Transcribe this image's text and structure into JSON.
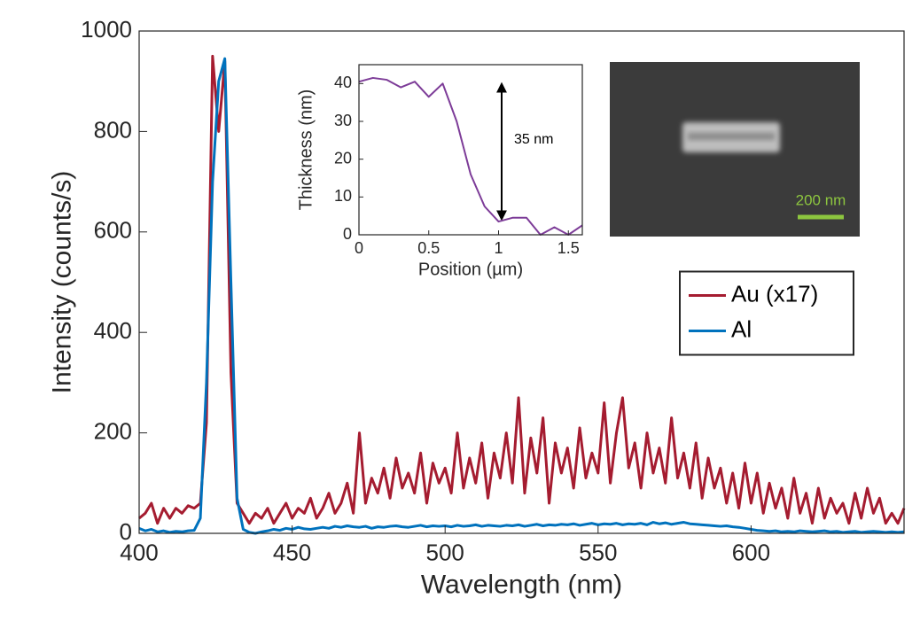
{
  "chart_data": [
    {
      "type": "line",
      "xlabel": "Wavelength (nm)",
      "ylabel": "Intensity (counts/s)",
      "xlim": [
        400,
        650
      ],
      "ylim": [
        0,
        1000
      ],
      "xticks": [
        400,
        450,
        500,
        550,
        600
      ],
      "yticks": [
        0,
        200,
        400,
        600,
        800,
        1000
      ],
      "grid": false,
      "legend": "east",
      "x": [
        400,
        402,
        404,
        406,
        408,
        410,
        412,
        414,
        416,
        418,
        420,
        422,
        424,
        426,
        428,
        430,
        432,
        434,
        436,
        438,
        440,
        442,
        444,
        446,
        448,
        450,
        452,
        454,
        456,
        458,
        460,
        462,
        464,
        466,
        468,
        470,
        472,
        474,
        476,
        478,
        480,
        482,
        484,
        486,
        488,
        490,
        492,
        494,
        496,
        498,
        500,
        502,
        504,
        506,
        508,
        510,
        512,
        514,
        516,
        518,
        520,
        522,
        524,
        526,
        528,
        530,
        532,
        534,
        536,
        538,
        540,
        542,
        544,
        546,
        548,
        550,
        552,
        554,
        556,
        558,
        560,
        562,
        564,
        566,
        568,
        570,
        572,
        574,
        576,
        578,
        580,
        582,
        584,
        586,
        588,
        590,
        592,
        594,
        596,
        598,
        600,
        602,
        604,
        606,
        608,
        610,
        612,
        614,
        616,
        618,
        620,
        622,
        624,
        626,
        628,
        630,
        632,
        634,
        636,
        638,
        640,
        642,
        644,
        646,
        648,
        650
      ],
      "series": [
        {
          "name": "Au (x17)",
          "color": "#a51c30",
          "values": [
            30,
            40,
            60,
            20,
            50,
            30,
            50,
            40,
            55,
            50,
            60,
            220,
            950,
            800,
            940,
            320,
            60,
            40,
            20,
            40,
            30,
            50,
            20,
            40,
            60,
            30,
            50,
            40,
            70,
            30,
            50,
            80,
            40,
            60,
            100,
            40,
            200,
            60,
            110,
            80,
            130,
            70,
            150,
            90,
            120,
            80,
            160,
            60,
            140,
            100,
            130,
            80,
            200,
            90,
            150,
            100,
            180,
            70,
            160,
            110,
            200,
            100,
            270,
            80,
            190,
            120,
            230,
            60,
            180,
            120,
            170,
            90,
            210,
            110,
            160,
            120,
            260,
            100,
            200,
            270,
            130,
            180,
            90,
            200,
            120,
            170,
            100,
            230,
            110,
            160,
            90,
            180,
            70,
            150,
            90,
            130,
            60,
            120,
            50,
            140,
            60,
            120,
            40,
            100,
            50,
            90,
            30,
            110,
            40,
            80,
            20,
            90,
            30,
            70,
            40,
            60,
            20,
            80,
            30,
            90,
            40,
            70,
            20,
            40,
            20,
            50
          ]
        },
        {
          "name": "Al",
          "color": "#0072bd",
          "values": [
            10,
            5,
            8,
            3,
            5,
            2,
            4,
            3,
            5,
            6,
            30,
            300,
            700,
            900,
            945,
            500,
            70,
            8,
            2,
            0,
            3,
            5,
            8,
            6,
            10,
            8,
            12,
            9,
            8,
            10,
            12,
            10,
            14,
            12,
            15,
            13,
            12,
            14,
            10,
            13,
            12,
            14,
            15,
            13,
            12,
            14,
            16,
            13,
            15,
            14,
            15,
            13,
            16,
            14,
            15,
            17,
            14,
            16,
            15,
            14,
            16,
            15,
            17,
            14,
            16,
            18,
            15,
            17,
            16,
            18,
            17,
            19,
            16,
            18,
            20,
            17,
            19,
            18,
            20,
            17,
            19,
            18,
            20,
            17,
            22,
            19,
            21,
            18,
            20,
            22,
            19,
            18,
            17,
            16,
            15,
            14,
            15,
            13,
            12,
            10,
            8,
            6,
            5,
            4,
            5,
            3,
            4,
            3,
            5,
            4,
            3,
            4,
            5,
            3,
            4,
            2,
            3,
            4,
            2,
            3,
            4,
            3,
            2,
            3,
            2,
            3
          ]
        }
      ]
    },
    {
      "type": "line",
      "xlabel": "Position (µm)",
      "ylabel": "Thickness (nm)",
      "xlim": [
        0,
        1.6
      ],
      "ylim": [
        0,
        45
      ],
      "xticks": [
        0,
        0.5,
        1,
        1.5
      ],
      "yticks": [
        0,
        10,
        20,
        30,
        40
      ],
      "grid": false,
      "annotation": "35 nm",
      "x": [
        0,
        0.1,
        0.2,
        0.3,
        0.4,
        0.5,
        0.6,
        0.7,
        0.8,
        0.9,
        1.0,
        1.1,
        1.2,
        1.3,
        1.4,
        1.5,
        1.6
      ],
      "series": [
        {
          "color": "#7d3c98",
          "values": [
            40.5,
            41.5,
            41,
            39,
            40.5,
            36.5,
            40,
            30,
            16,
            7.5,
            3.5,
            4.5,
            4.5,
            0,
            2,
            0,
            2.5
          ]
        }
      ]
    }
  ],
  "image": {
    "scale_bar_label": "200 nm"
  }
}
